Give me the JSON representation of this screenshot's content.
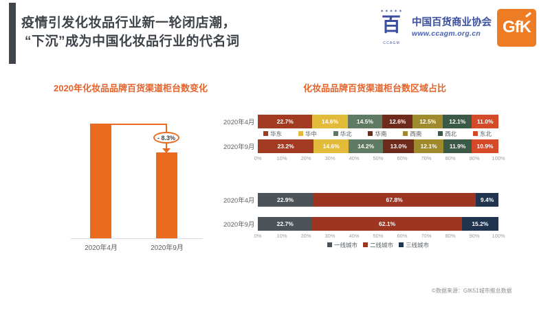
{
  "header": {
    "title_line1": "疫情引发化妆品行业新一轮闭店潮，",
    "title_line2": "“下沉”成为中国化妆品行业的代名词"
  },
  "logos": {
    "ccagm": {
      "name": "中国百货商业协会",
      "url": "www.ccagm.org.cn",
      "emblem_char": "百",
      "color": "#3b4f9e"
    },
    "gfk": {
      "label": "GfK",
      "bg_color": "#ee7c24"
    }
  },
  "chart_data": [
    {
      "type": "bar",
      "title": "2020年化妆品品牌百货渠道柜台数变化",
      "categories": [
        "2020年4月",
        "2020年9月"
      ],
      "annotation": "- 8.3%",
      "change_pct": -8.3,
      "bar_color": "#ea6a1f",
      "bar_heights_rel": [
        1.0,
        0.75
      ],
      "ylim": null,
      "grid": false
    },
    {
      "type": "bar",
      "orientation": "horizontal-stacked",
      "title": "化妆品品牌百货渠道柜台数区域占比",
      "categories": [
        "2020年4月",
        "2020年9月"
      ],
      "series": [
        {
          "name": "华东",
          "values": [
            22.7,
            23.2
          ],
          "color": "#a33b22"
        },
        {
          "name": "华中",
          "values": [
            14.6,
            14.6
          ],
          "color": "#e3bb3b"
        },
        {
          "name": "华北",
          "values": [
            14.5,
            14.2
          ],
          "color": "#5f7a62"
        },
        {
          "name": "华南",
          "values": [
            12.6,
            13.0
          ],
          "color": "#6e2b1b"
        },
        {
          "name": "西南",
          "values": [
            12.5,
            12.1
          ],
          "color": "#a08a2e"
        },
        {
          "name": "西北",
          "values": [
            12.1,
            11.9
          ],
          "color": "#3a5a47"
        },
        {
          "name": "东北",
          "values": [
            11.0,
            10.9
          ],
          "color": "#d44a28"
        }
      ],
      "x_ticks": [
        "0%",
        "10%",
        "20%",
        "30%",
        "40%",
        "50%",
        "60%",
        "70%",
        "80%",
        "90%",
        "100%"
      ],
      "xlim": [
        0,
        100
      ],
      "legend_position": "between-rows",
      "grid": false
    },
    {
      "type": "bar",
      "orientation": "horizontal-stacked",
      "title": "",
      "categories": [
        "2020年4月",
        "2020年9月"
      ],
      "series": [
        {
          "name": "一线城市",
          "values": [
            22.9,
            22.7
          ],
          "color": "#4d5459"
        },
        {
          "name": "二线城市",
          "values": [
            67.8,
            62.1
          ],
          "color": "#9c3522"
        },
        {
          "name": "三线城市",
          "values": [
            9.4,
            15.2
          ],
          "color": "#203450"
        }
      ],
      "x_ticks": [
        "0%",
        "10%",
        "20%",
        "30%",
        "40%",
        "50%",
        "60%",
        "70%",
        "80%",
        "90%",
        "100%"
      ],
      "xlim": [
        0,
        100
      ],
      "legend_position": "bottom",
      "grid": false
    }
  ],
  "footer": {
    "source": "©数据来源：GfK51城市推总数据"
  }
}
